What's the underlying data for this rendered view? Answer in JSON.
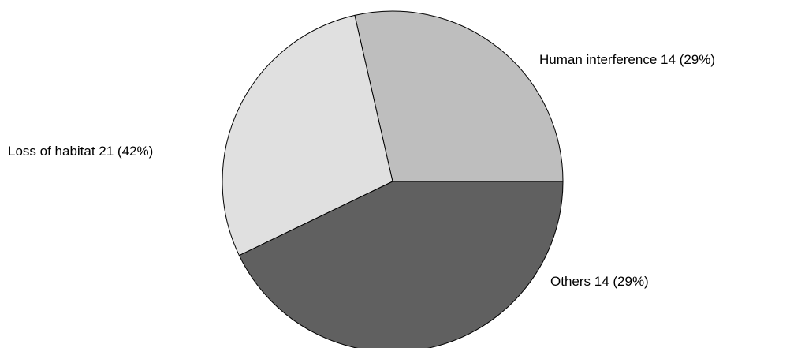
{
  "chart_data": {
    "type": "pie",
    "title": "",
    "slices": [
      {
        "label": "Human interference 14 (29%)",
        "category": "Human interference",
        "value": 14,
        "percent": 29,
        "color": "#bebebe"
      },
      {
        "label": "Others 14 (29%)",
        "category": "Others",
        "value": 14,
        "percent": 29,
        "color": "#e0e0e0"
      },
      {
        "label": "Loss of habitat 21 (42%)",
        "category": "Loss of habitat",
        "value": 21,
        "percent": 42,
        "color": "#606060"
      }
    ],
    "start_angle_deg": 0,
    "direction": "counterclockwise",
    "legend": "none"
  }
}
